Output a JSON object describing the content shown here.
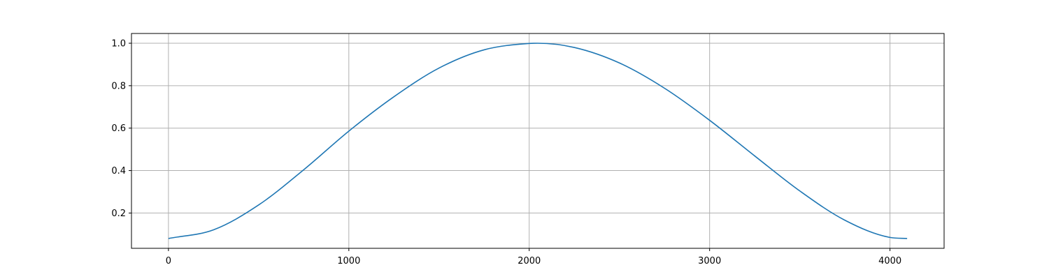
{
  "chart_data": {
    "type": "line",
    "title": "",
    "xlabel": "",
    "ylabel": "",
    "xlim": [
      -205,
      4300
    ],
    "ylim": [
      0.0337,
      1.046
    ],
    "x_ticks": [
      0,
      1000,
      2000,
      3000,
      4000
    ],
    "y_ticks": [
      0.2,
      0.4,
      0.6,
      0.8,
      1.0
    ],
    "x_tick_labels": [
      "0",
      "1000",
      "2000",
      "3000",
      "4000"
    ],
    "y_tick_labels": [
      "0.2",
      "0.4",
      "0.6",
      "0.8",
      "1.0"
    ],
    "grid": true,
    "series": [
      {
        "color": "#1f77b4",
        "x": [
          0,
          250,
          500,
          750,
          1000,
          1250,
          1500,
          1750,
          2000,
          2047,
          2250,
          2500,
          2750,
          3000,
          3250,
          3500,
          3750,
          4000,
          4095
        ],
        "y": [
          0.08,
          0.121,
          0.238,
          0.404,
          0.586,
          0.748,
          0.883,
          0.969,
          0.999,
          1.0,
          0.98,
          0.907,
          0.788,
          0.637,
          0.469,
          0.304,
          0.166,
          0.085,
          0.08
        ]
      }
    ]
  }
}
